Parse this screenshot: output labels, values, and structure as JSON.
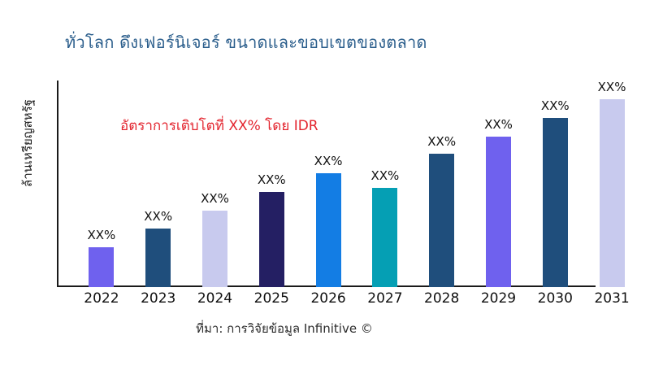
{
  "title": "ทั่วโลก ดึงเฟอร์นิเจอร์ ขนาดและขอบเขตของตลาด",
  "annotation": "อัตราการเติบโตที่ XX% โดย IDR",
  "source": "ที่มา: การวิจัยข้อมูล Infinitive ©",
  "colors": {
    "title": "#2b5e8c",
    "annotation_red": "#e3242e",
    "axis": "#1a1a1a",
    "violet": "#6f61ee",
    "steel_blue": "#1f4e7c",
    "lavender": "#c8caee",
    "dark_navy": "#241f63",
    "bright_blue": "#137de4",
    "teal": "#059fb4"
  },
  "chart_data": {
    "type": "bar",
    "title": "ทั่วโลก ดึงเฟอร์นิเจอร์ ขนาดและขอบเขตของตลาด",
    "xlabel": "",
    "ylabel": "ล้านเหรียญสหรัฐ",
    "categories": [
      "2022",
      "2023",
      "2024",
      "2025",
      "2026",
      "2027",
      "2028",
      "2029",
      "2030",
      "2031"
    ],
    "bar_labels": [
      "XX%",
      "XX%",
      "XX%",
      "XX%",
      "XX%",
      "XX%",
      "XX%",
      "XX%",
      "XX%",
      "XX%"
    ],
    "relative_heights_pct": [
      19.3,
      28.3,
      37.0,
      46.1,
      55.1,
      48.0,
      64.6,
      72.8,
      81.9,
      90.9
    ],
    "bar_colors": [
      "#6f61ee",
      "#1f4e7c",
      "#c8caee",
      "#241f63",
      "#137de4",
      "#059fb4",
      "#1f4e7c",
      "#6f61ee",
      "#1f4e7c",
      "#c8caee"
    ],
    "annotation": "อัตราการเติบโตที่ XX% โดย IDR",
    "legend": false,
    "grid": false,
    "value_axis_ticks": "none"
  }
}
